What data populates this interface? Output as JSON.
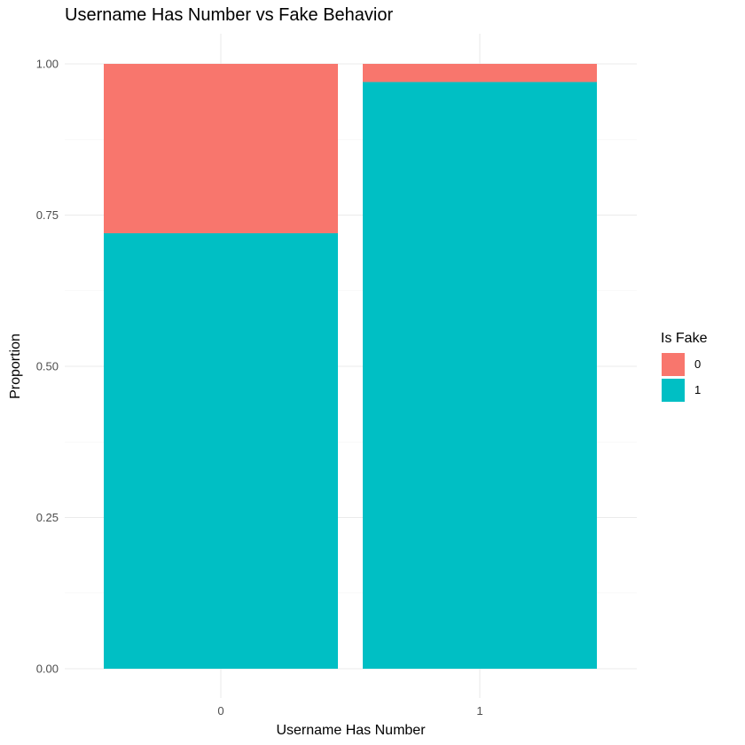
{
  "chart_data": {
    "type": "bar",
    "stacked": true,
    "title": "Username Has Number vs Fake Behavior",
    "xlabel": "Username Has Number",
    "ylabel": "Proportion",
    "categories": [
      "0",
      "1"
    ],
    "ylim": [
      0,
      1
    ],
    "yticks": [
      "0.00",
      "0.25",
      "0.50",
      "0.75",
      "1.00"
    ],
    "grid": true,
    "legend": {
      "title": "Is Fake",
      "position": "right"
    },
    "series": [
      {
        "name": "1",
        "color": "#00BFC4",
        "values": [
          0.72,
          0.97
        ]
      },
      {
        "name": "0",
        "color": "#F8766D",
        "values": [
          0.28,
          0.03
        ]
      }
    ]
  }
}
